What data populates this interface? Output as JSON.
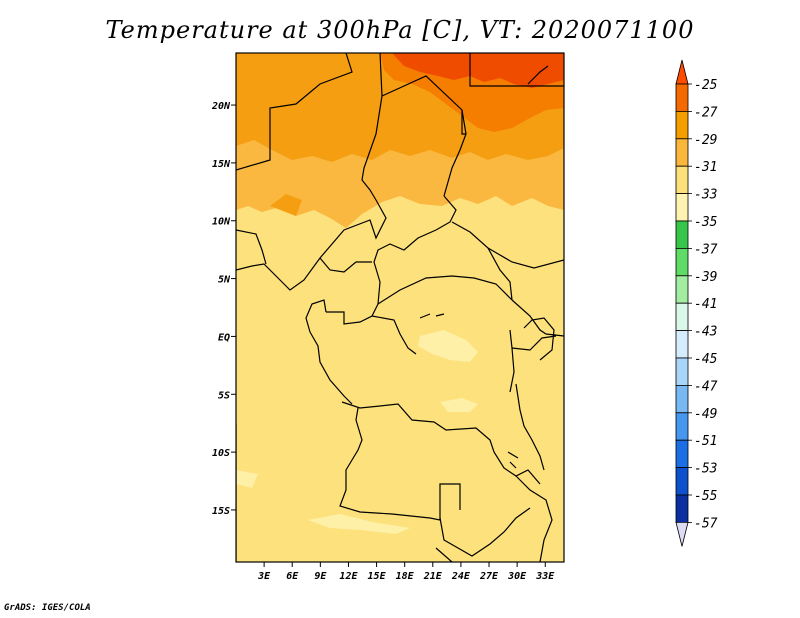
{
  "title": "Temperature at 300hPa [C], VT: 2020071100",
  "footer": "GrADS: IGES/COLA",
  "map": {
    "lat_ticks": [
      "20N",
      "15N",
      "10N",
      "5N",
      "EQ",
      "5S",
      "10S",
      "15S"
    ],
    "lon_ticks": [
      "3E",
      "6E",
      "9E",
      "12E",
      "15E",
      "18E",
      "21E",
      "24E",
      "27E",
      "30E",
      "33E"
    ],
    "lon_range": [
      0,
      35
    ],
    "lat_range": [
      -19.5,
      24.5
    ]
  },
  "colorbar": {
    "labels": [
      "-25",
      "-27",
      "-29",
      "-31",
      "-33",
      "-35",
      "-37",
      "-39",
      "-41",
      "-43",
      "-45",
      "-47",
      "-49",
      "-51",
      "-53",
      "-55",
      "-57"
    ],
    "colors": [
      "#f03c00",
      "#f56a00",
      "#f59e00",
      "#fbb63c",
      "#fde07a",
      "#fef3b0",
      "#37c64b",
      "#5fdb66",
      "#a2eda2",
      "#d9f8ea",
      "#d5ecfc",
      "#a9d6f8",
      "#78b9f3",
      "#4797ee",
      "#1c6ee5",
      "#0d52cc",
      "#0b2fa0",
      "#0b1070"
    ],
    "top_arrow_color": "#ff4b00",
    "bottom_arrow_color": "#dcdcf5"
  },
  "field_colors": {
    "warmest": "#f04c00",
    "warm": "#f57d00",
    "orange": "#f59e12",
    "light_orange": "#fbb840",
    "yellow": "#fde17c",
    "pale": "#fff0a8"
  }
}
